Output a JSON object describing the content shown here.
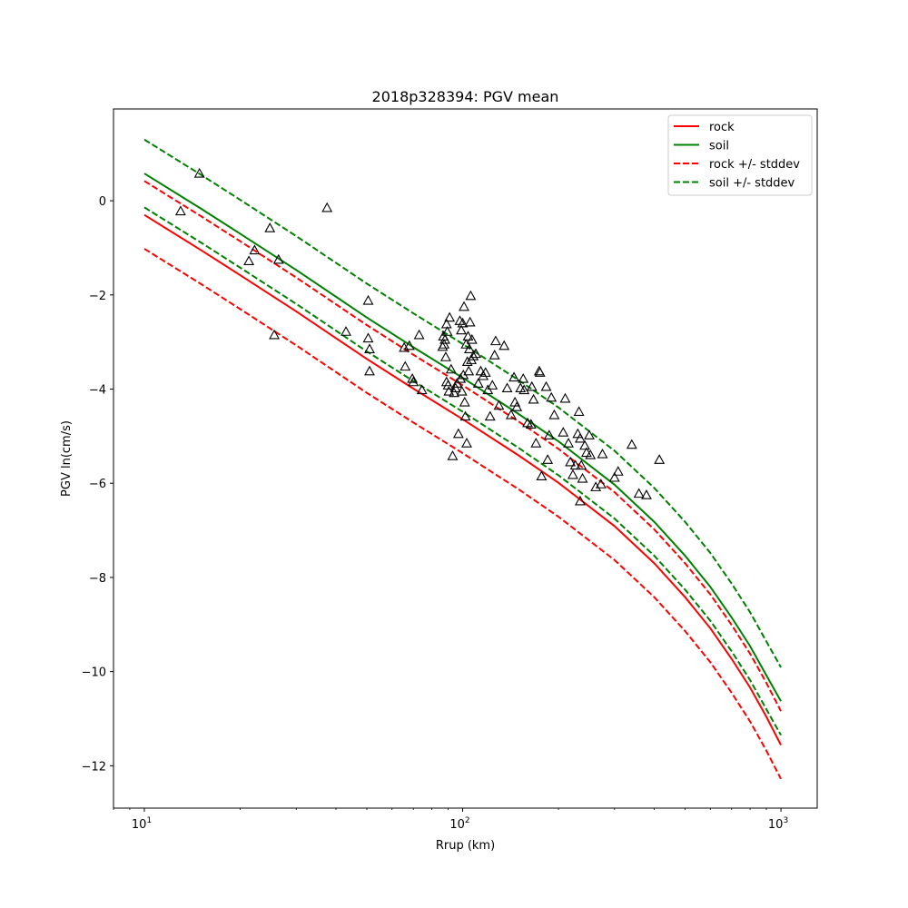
{
  "chart_data": {
    "type": "line",
    "title": "2018p328394: PGV mean",
    "xlabel": "Rrup (km)",
    "ylabel": "PGV ln(cm/s)",
    "xscale": "log",
    "xlim": [
      8,
      1300
    ],
    "ylim": [
      -12.9,
      1.95
    ],
    "xticks": [
      {
        "value": 10,
        "base": "10",
        "exp": "1"
      },
      {
        "value": 100,
        "base": "10",
        "exp": "2"
      },
      {
        "value": 1000,
        "base": "10",
        "exp": "3"
      }
    ],
    "yticks": [
      {
        "value": 0,
        "label": "0"
      },
      {
        "value": -2,
        "label": "−2"
      },
      {
        "value": -4,
        "label": "−4"
      },
      {
        "value": -6,
        "label": "−6"
      },
      {
        "value": -8,
        "label": "−8"
      },
      {
        "value": -10,
        "label": "−10"
      },
      {
        "value": -12,
        "label": "−12"
      }
    ],
    "legend_position": "top-right",
    "curve_x": [
      10,
      15,
      20,
      30,
      50,
      70,
      100,
      150,
      200,
      300,
      400,
      500,
      600,
      700,
      800,
      900,
      1000
    ],
    "series": [
      {
        "name": "rock",
        "color": "#ff0000",
        "dashed": false,
        "y": [
          -0.3,
          -1.04,
          -1.58,
          -2.35,
          -3.36,
          -3.99,
          -4.64,
          -5.41,
          -5.99,
          -6.91,
          -7.7,
          -8.42,
          -9.08,
          -9.73,
          -10.34,
          -10.96,
          -11.56
        ]
      },
      {
        "name": "soil",
        "color": "#008000",
        "dashed": false,
        "y": [
          0.58,
          -0.16,
          -0.7,
          -1.47,
          -2.48,
          -3.11,
          -3.76,
          -4.53,
          -5.11,
          -6.03,
          -6.82,
          -7.54,
          -8.2,
          -8.85,
          -9.46,
          -10.08,
          -10.63
        ]
      },
      {
        "name": "rock +/- stddev",
        "color": "#ff0000",
        "dashed": true,
        "y": [
          0.42,
          -0.32,
          -0.86,
          -1.63,
          -2.64,
          -3.27,
          -3.92,
          -4.69,
          -5.27,
          -6.19,
          -6.98,
          -7.7,
          -8.36,
          -9.01,
          -9.62,
          -10.24,
          -10.84
        ]
      },
      {
        "name": "",
        "color": "#ff0000",
        "dashed": true,
        "y": [
          -1.02,
          -1.76,
          -2.3,
          -3.07,
          -4.08,
          -4.71,
          -5.36,
          -6.13,
          -6.71,
          -7.63,
          -8.42,
          -9.14,
          -9.8,
          -10.45,
          -11.06,
          -11.68,
          -12.28
        ]
      },
      {
        "name": "soil +/- stddev",
        "color": "#008000",
        "dashed": true,
        "y": [
          1.3,
          0.56,
          0.02,
          -0.75,
          -1.76,
          -2.39,
          -3.04,
          -3.81,
          -4.39,
          -5.31,
          -6.1,
          -6.82,
          -7.48,
          -8.13,
          -8.74,
          -9.36,
          -9.91
        ]
      },
      {
        "name": "",
        "color": "#008000",
        "dashed": true,
        "y": [
          -0.14,
          -0.88,
          -1.42,
          -2.19,
          -3.2,
          -3.83,
          -4.48,
          -5.25,
          -5.83,
          -6.75,
          -7.54,
          -8.26,
          -8.92,
          -9.57,
          -10.18,
          -10.8,
          -11.35
        ]
      }
    ],
    "observations": [
      [
        13.0,
        -0.22
      ],
      [
        14.9,
        0.58
      ],
      [
        21.3,
        -1.28
      ],
      [
        22.2,
        -1.05
      ],
      [
        24.8,
        -0.58
      ],
      [
        25.6,
        -2.85
      ],
      [
        26.4,
        -1.25
      ],
      [
        37.5,
        -0.15
      ],
      [
        43.0,
        -2.78
      ],
      [
        50.5,
        -2.12
      ],
      [
        50.5,
        -2.92
      ],
      [
        51.0,
        -3.15
      ],
      [
        51.0,
        -3.62
      ],
      [
        65.5,
        -3.12
      ],
      [
        66.0,
        -3.52
      ],
      [
        68.0,
        -3.08
      ],
      [
        69.5,
        -3.78
      ],
      [
        70.0,
        -3.85
      ],
      [
        73.0,
        -2.85
      ],
      [
        74.5,
        -4.02
      ],
      [
        86.5,
        -3.1
      ],
      [
        87.0,
        -2.88
      ],
      [
        87.5,
        -3.05
      ],
      [
        88.0,
        -2.95
      ],
      [
        88.5,
        -3.32
      ],
      [
        89.0,
        -2.62
      ],
      [
        89.0,
        -3.85
      ],
      [
        89.5,
        -2.78
      ],
      [
        90.0,
        -3.92
      ],
      [
        90.5,
        -4.05
      ],
      [
        91.0,
        -2.48
      ],
      [
        92.0,
        -3.58
      ],
      [
        93.0,
        -5.42
      ],
      [
        94.0,
        -4.08
      ],
      [
        95.0,
        -3.98
      ],
      [
        96.0,
        -3.88
      ],
      [
        97.0,
        -4.95
      ],
      [
        98.0,
        -2.55
      ],
      [
        98.5,
        -3.78
      ],
      [
        99.0,
        -2.75
      ],
      [
        99.5,
        -4.05
      ],
      [
        100.0,
        -2.6
      ],
      [
        100.5,
        -3.7
      ],
      [
        101.0,
        -2.25
      ],
      [
        101.5,
        -4.28
      ],
      [
        102.0,
        -4.58
      ],
      [
        102.5,
        -3.05
      ],
      [
        103.0,
        -5.15
      ],
      [
        103.5,
        -3.42
      ],
      [
        104.0,
        -2.88
      ],
      [
        104.5,
        -3.62
      ],
      [
        105.0,
        -3.15
      ],
      [
        105.5,
        -2.58
      ],
      [
        106.0,
        -2.02
      ],
      [
        106.5,
        -3.38
      ],
      [
        107.0,
        -2.95
      ],
      [
        108.0,
        -3.3
      ],
      [
        110.0,
        -3.25
      ],
      [
        112.0,
        -3.88
      ],
      [
        114.0,
        -3.62
      ],
      [
        116.0,
        -3.72
      ],
      [
        118.0,
        -3.65
      ],
      [
        120.0,
        -4.02
      ],
      [
        122.0,
        -4.58
      ],
      [
        124.0,
        -3.92
      ],
      [
        126.0,
        -3.28
      ],
      [
        127.0,
        -2.98
      ],
      [
        130.0,
        -4.35
      ],
      [
        135.0,
        -3.08
      ],
      [
        138.0,
        -3.98
      ],
      [
        142.0,
        -4.55
      ],
      [
        145.0,
        -3.75
      ],
      [
        146.0,
        -4.28
      ],
      [
        148.0,
        -4.38
      ],
      [
        152.0,
        -3.98
      ],
      [
        155.0,
        -3.78
      ],
      [
        156.0,
        -4.02
      ],
      [
        160.0,
        -4.72
      ],
      [
        164.0,
        -4.75
      ],
      [
        165.0,
        -3.95
      ],
      [
        167.0,
        -4.22
      ],
      [
        170.0,
        -5.15
      ],
      [
        174.0,
        -3.62
      ],
      [
        175.0,
        -3.65
      ],
      [
        177.0,
        -5.85
      ],
      [
        183.0,
        -3.95
      ],
      [
        185.0,
        -5.5
      ],
      [
        187.0,
        -4.98
      ],
      [
        190.0,
        -4.18
      ],
      [
        194.0,
        -4.55
      ],
      [
        207.0,
        -4.92
      ],
      [
        210.0,
        -4.2
      ],
      [
        215.0,
        -5.15
      ],
      [
        218.0,
        -5.55
      ],
      [
        222.0,
        -5.82
      ],
      [
        226.0,
        -5.62
      ],
      [
        230.0,
        -4.95
      ],
      [
        232.0,
        -4.48
      ],
      [
        234.0,
        -5.05
      ],
      [
        236.0,
        -5.62
      ],
      [
        238.0,
        -5.9
      ],
      [
        234.0,
        -6.38
      ],
      [
        242.0,
        -5.2
      ],
      [
        245.0,
        -5.35
      ],
      [
        250.0,
        -4.98
      ],
      [
        252.0,
        -5.4
      ],
      [
        262.0,
        -6.08
      ],
      [
        272.0,
        -6.02
      ],
      [
        275.0,
        -5.38
      ],
      [
        300.0,
        -5.88
      ],
      [
        308.0,
        -5.75
      ],
      [
        340.0,
        -5.18
      ],
      [
        358.0,
        -6.22
      ],
      [
        378.0,
        -6.25
      ],
      [
        415.0,
        -5.5
      ]
    ]
  }
}
